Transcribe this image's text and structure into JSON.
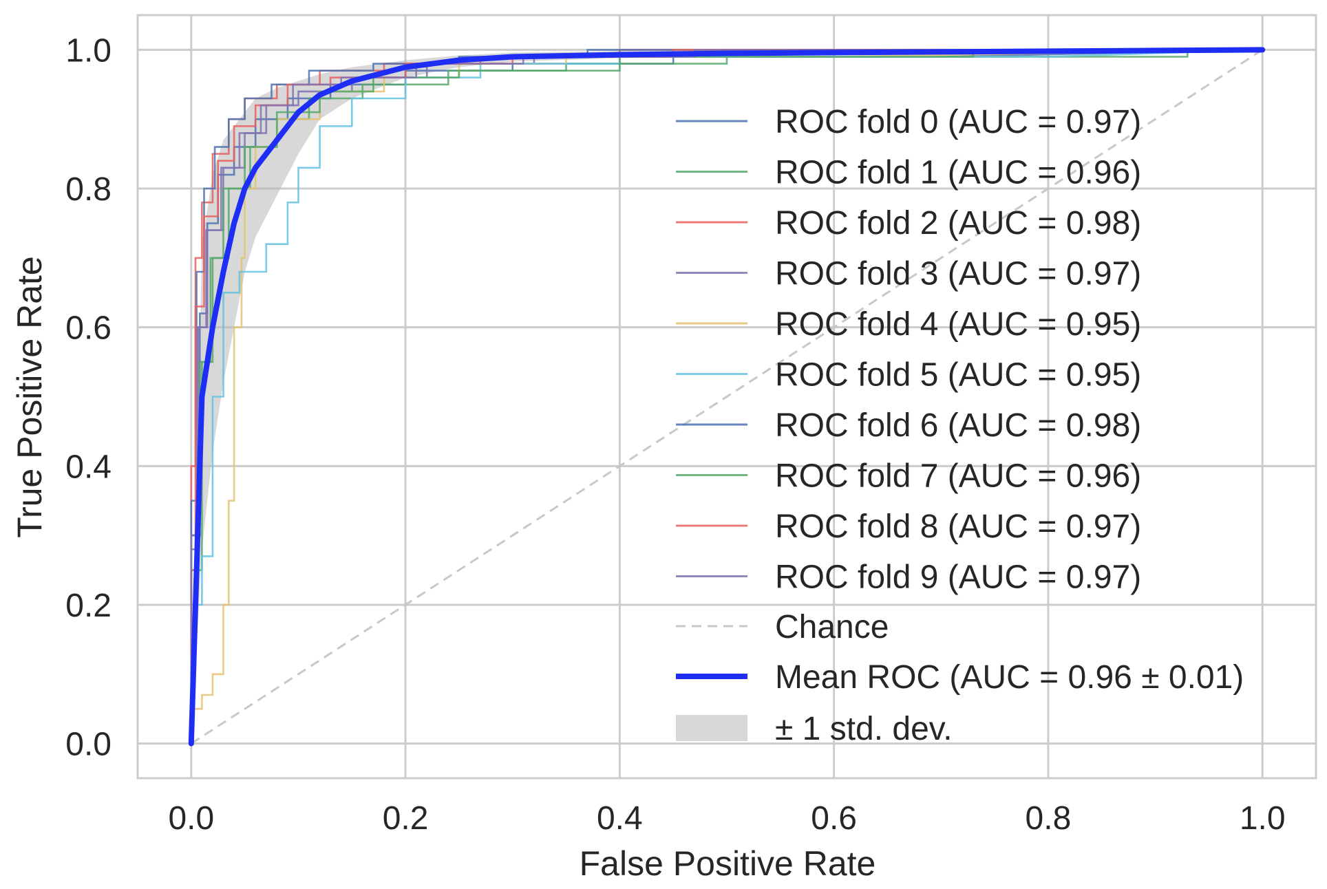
{
  "chart_data": {
    "type": "line",
    "title": "",
    "xlabel": "False Positive Rate",
    "ylabel": "True Positive Rate",
    "xlim": [
      -0.05,
      1.05
    ],
    "ylim": [
      -0.05,
      1.05
    ],
    "xticks": [
      0.0,
      0.2,
      0.4,
      0.6,
      0.8,
      1.0
    ],
    "yticks": [
      0.0,
      0.2,
      0.4,
      0.6,
      0.8,
      1.0
    ],
    "xtick_labels": [
      "0.0",
      "0.2",
      "0.4",
      "0.6",
      "0.8",
      "1.0"
    ],
    "ytick_labels": [
      "0.0",
      "0.2",
      "0.4",
      "0.6",
      "0.8",
      "1.0"
    ],
    "grid": true,
    "legend_position": "right",
    "series": [
      {
        "name": "ROC fold 0 (AUC = 0.97)",
        "color": "#4c72b0",
        "x": [
          0,
          0,
          0.008,
          0.008,
          0.015,
          0.015,
          0.025,
          0.025,
          0.04,
          0.04,
          0.06,
          0.06,
          0.09,
          0.09,
          0.13,
          0.13,
          0.2,
          0.2,
          0.3,
          0.3,
          0.45,
          0.45,
          0.7,
          1.0
        ],
        "y": [
          0,
          0.3,
          0.3,
          0.62,
          0.62,
          0.75,
          0.75,
          0.82,
          0.82,
          0.86,
          0.86,
          0.9,
          0.9,
          0.93,
          0.93,
          0.95,
          0.95,
          0.97,
          0.97,
          0.98,
          0.98,
          0.99,
          0.99,
          1.0
        ]
      },
      {
        "name": "ROC fold 1 (AUC = 0.96)",
        "color": "#55a868",
        "x": [
          0,
          0,
          0.01,
          0.01,
          0.02,
          0.02,
          0.035,
          0.035,
          0.055,
          0.055,
          0.08,
          0.08,
          0.11,
          0.11,
          0.16,
          0.16,
          0.24,
          0.24,
          0.35,
          0.35,
          0.5,
          0.5,
          0.93,
          0.93,
          1.0
        ],
        "y": [
          0,
          0.25,
          0.25,
          0.55,
          0.55,
          0.7,
          0.7,
          0.8,
          0.8,
          0.86,
          0.86,
          0.9,
          0.9,
          0.93,
          0.93,
          0.95,
          0.95,
          0.97,
          0.97,
          0.98,
          0.98,
          0.99,
          0.99,
          1.0,
          1.0
        ]
      },
      {
        "name": "ROC fold 2 (AUC = 0.98)",
        "color": "#e86060",
        "x": [
          0,
          0,
          0.004,
          0.004,
          0.01,
          0.01,
          0.02,
          0.02,
          0.035,
          0.035,
          0.05,
          0.05,
          0.08,
          0.08,
          0.12,
          0.12,
          0.18,
          0.18,
          0.27,
          0.27,
          0.4,
          0.4,
          1.0
        ],
        "y": [
          0,
          0.4,
          0.4,
          0.7,
          0.7,
          0.78,
          0.78,
          0.85,
          0.85,
          0.9,
          0.9,
          0.93,
          0.93,
          0.95,
          0.95,
          0.97,
          0.97,
          0.98,
          0.98,
          0.99,
          0.99,
          1.0,
          1.0
        ]
      },
      {
        "name": "ROC fold 3 (AUC = 0.97)",
        "color": "#8172b2",
        "x": [
          0,
          0,
          0.007,
          0.007,
          0.015,
          0.015,
          0.03,
          0.03,
          0.05,
          0.05,
          0.07,
          0.07,
          0.1,
          0.1,
          0.15,
          0.15,
          0.22,
          0.22,
          0.32,
          0.32,
          0.5,
          0.5,
          1.0
        ],
        "y": [
          0,
          0.28,
          0.28,
          0.6,
          0.6,
          0.74,
          0.74,
          0.83,
          0.83,
          0.88,
          0.88,
          0.92,
          0.92,
          0.94,
          0.94,
          0.96,
          0.96,
          0.98,
          0.98,
          0.99,
          0.99,
          1.0,
          1.0
        ]
      },
      {
        "name": "ROC fold 4 (AUC = 0.95)",
        "color": "#e6c270",
        "x": [
          0,
          0,
          0.01,
          0.01,
          0.02,
          0.02,
          0.03,
          0.03,
          0.035,
          0.035,
          0.04,
          0.04,
          0.047,
          0.047,
          0.05,
          0.05,
          0.06,
          0.06,
          0.08,
          0.08,
          0.12,
          0.12,
          0.18,
          0.18,
          0.25,
          0.25,
          0.35,
          0.35,
          0.6,
          1.0
        ],
        "y": [
          0,
          0.05,
          0.05,
          0.07,
          0.07,
          0.1,
          0.1,
          0.2,
          0.2,
          0.35,
          0.35,
          0.6,
          0.6,
          0.7,
          0.7,
          0.8,
          0.8,
          0.86,
          0.86,
          0.9,
          0.9,
          0.94,
          0.94,
          0.96,
          0.96,
          0.98,
          0.98,
          0.99,
          0.99,
          1.0
        ]
      },
      {
        "name": "ROC fold 5 (AUC = 0.95)",
        "color": "#64c2e0",
        "x": [
          0,
          0,
          0.01,
          0.01,
          0.02,
          0.02,
          0.03,
          0.03,
          0.045,
          0.045,
          0.07,
          0.07,
          0.09,
          0.09,
          0.1,
          0.1,
          0.12,
          0.12,
          0.15,
          0.15,
          0.2,
          0.2,
          0.27,
          0.27,
          0.4,
          0.4,
          0.8,
          1.0
        ],
        "y": [
          0,
          0.2,
          0.2,
          0.27,
          0.27,
          0.5,
          0.5,
          0.65,
          0.65,
          0.68,
          0.68,
          0.72,
          0.72,
          0.78,
          0.78,
          0.83,
          0.83,
          0.89,
          0.89,
          0.93,
          0.93,
          0.96,
          0.96,
          0.98,
          0.98,
          0.99,
          0.99,
          1.0
        ]
      },
      {
        "name": "ROC fold 6 (AUC = 0.98)",
        "color": "#4c72b0",
        "x": [
          0,
          0,
          0.005,
          0.005,
          0.012,
          0.012,
          0.022,
          0.022,
          0.035,
          0.035,
          0.05,
          0.05,
          0.075,
          0.075,
          0.11,
          0.11,
          0.17,
          0.17,
          0.25,
          0.25,
          0.37,
          0.37,
          1.0
        ],
        "y": [
          0,
          0.35,
          0.35,
          0.68,
          0.68,
          0.8,
          0.8,
          0.86,
          0.86,
          0.9,
          0.9,
          0.93,
          0.93,
          0.95,
          0.95,
          0.97,
          0.97,
          0.98,
          0.98,
          0.99,
          0.99,
          1.0,
          1.0
        ]
      },
      {
        "name": "ROC fold 7 (AUC = 0.96)",
        "color": "#55a868",
        "x": [
          0,
          0,
          0.008,
          0.008,
          0.018,
          0.018,
          0.03,
          0.03,
          0.05,
          0.05,
          0.08,
          0.08,
          0.12,
          0.12,
          0.17,
          0.17,
          0.25,
          0.25,
          0.4,
          0.4,
          0.73,
          0.73,
          1.0
        ],
        "y": [
          0,
          0.3,
          0.3,
          0.55,
          0.55,
          0.7,
          0.7,
          0.8,
          0.8,
          0.86,
          0.86,
          0.91,
          0.91,
          0.94,
          0.94,
          0.96,
          0.96,
          0.97,
          0.97,
          0.99,
          0.99,
          1.0,
          1.0
        ]
      },
      {
        "name": "ROC fold 8 (AUC = 0.97)",
        "color": "#e86060",
        "x": [
          0,
          0,
          0.004,
          0.004,
          0.012,
          0.012,
          0.025,
          0.025,
          0.04,
          0.04,
          0.06,
          0.06,
          0.09,
          0.09,
          0.13,
          0.13,
          0.2,
          0.2,
          0.3,
          0.3,
          0.45,
          0.45,
          1.0
        ],
        "y": [
          0,
          0.25,
          0.25,
          0.63,
          0.63,
          0.76,
          0.76,
          0.84,
          0.84,
          0.89,
          0.89,
          0.92,
          0.92,
          0.95,
          0.95,
          0.96,
          0.96,
          0.98,
          0.98,
          0.99,
          0.99,
          1.0,
          1.0
        ]
      },
      {
        "name": "ROC fold 9 (AUC = 0.97)",
        "color": "#8172b2",
        "x": [
          0,
          0,
          0.006,
          0.006,
          0.014,
          0.014,
          0.028,
          0.028,
          0.045,
          0.045,
          0.065,
          0.065,
          0.095,
          0.095,
          0.14,
          0.14,
          0.21,
          0.21,
          0.31,
          0.31,
          0.47,
          0.47,
          1.0
        ],
        "y": [
          0,
          0.3,
          0.3,
          0.6,
          0.6,
          0.74,
          0.74,
          0.83,
          0.83,
          0.88,
          0.88,
          0.92,
          0.92,
          0.95,
          0.95,
          0.96,
          0.96,
          0.98,
          0.98,
          0.99,
          0.99,
          1.0,
          1.0
        ]
      }
    ],
    "chance": {
      "name": "Chance",
      "color": "#c8c8c8",
      "x": [
        0,
        1
      ],
      "y": [
        0,
        1
      ]
    },
    "mean": {
      "name": "Mean ROC (AUC = 0.96 ± 0.01)",
      "color": "#1f2ef5",
      "x": [
        0,
        0.01,
        0.02,
        0.03,
        0.04,
        0.05,
        0.06,
        0.08,
        0.1,
        0.12,
        0.15,
        0.2,
        0.25,
        0.3,
        0.4,
        0.5,
        0.6,
        0.7,
        0.8,
        0.9,
        1.0
      ],
      "y": [
        0,
        0.5,
        0.6,
        0.68,
        0.75,
        0.8,
        0.83,
        0.87,
        0.91,
        0.935,
        0.955,
        0.975,
        0.985,
        0.99,
        0.993,
        0.995,
        0.996,
        0.997,
        0.998,
        0.999,
        1.0
      ],
      "std_upper": [
        0,
        0.72,
        0.82,
        0.87,
        0.89,
        0.91,
        0.93,
        0.945,
        0.955,
        0.965,
        0.975,
        0.985,
        0.992,
        0.996,
        0.998,
        0.999,
        1.0,
        1.0,
        1.0,
        1.0,
        1.0
      ],
      "std_lower": [
        0,
        0.28,
        0.42,
        0.52,
        0.6,
        0.68,
        0.73,
        0.79,
        0.85,
        0.9,
        0.93,
        0.96,
        0.975,
        0.983,
        0.988,
        0.991,
        0.993,
        0.995,
        0.996,
        0.998,
        1.0
      ]
    },
    "std_band": {
      "name": "± 1 std. dev.",
      "color": "#b8b8b8"
    }
  }
}
